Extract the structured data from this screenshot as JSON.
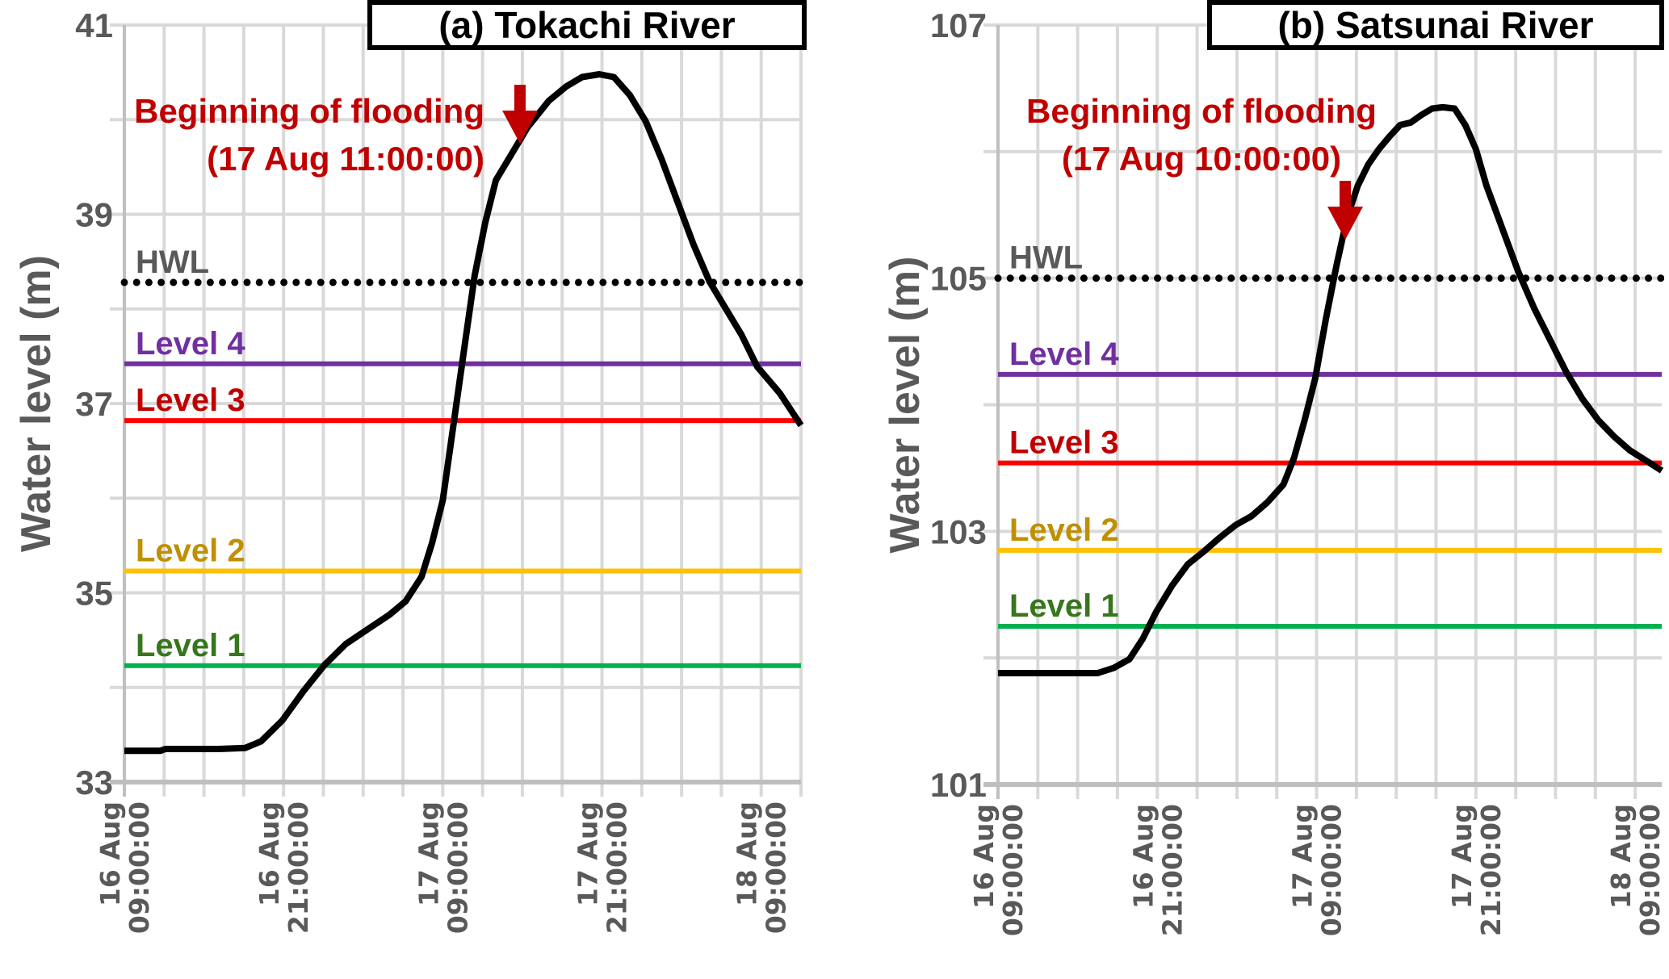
{
  "chart_data": [
    {
      "type": "line",
      "title": "(a) Tokachi River",
      "ylabel": "Water level (m)",
      "xlabel": "",
      "ylim": [
        33,
        41
      ],
      "yticks": [
        33,
        35,
        37,
        39,
        41
      ],
      "xlim_hours_from_start": [
        0,
        51
      ],
      "xticks": [
        {
          "hour": 0,
          "line1": "16 Aug",
          "line2": "09:00:00"
        },
        {
          "hour": 12,
          "line1": "16 Aug",
          "line2": "21:00:00"
        },
        {
          "hour": 24,
          "line1": "17 Aug",
          "line2": "09:00:00"
        },
        {
          "hour": 36,
          "line1": "17 Aug",
          "line2": "21:00:00"
        },
        {
          "hour": 48,
          "line1": "18 Aug",
          "line2": "09:00:00"
        }
      ],
      "grid": true,
      "annotation": {
        "line1": "Beginning of flooding",
        "line2": "(17 Aug 11:00:00)",
        "color": "#C00000"
      },
      "thresholds": [
        {
          "name": "HWL",
          "value": 38.28,
          "line_color": "#000000",
          "label_color": "#595959",
          "style": "dotted"
        },
        {
          "name": "Level 4",
          "value": 37.42,
          "line_color": "#7030A0",
          "label_color": "#7030A0",
          "style": "solid"
        },
        {
          "name": "Level 3",
          "value": 36.82,
          "line_color": "#FF0000",
          "label_color": "#C00000",
          "style": "solid"
        },
        {
          "name": "Level 2",
          "value": 35.23,
          "line_color": "#FFC000",
          "label_color": "#BF9000",
          "style": "solid"
        },
        {
          "name": "Level 1",
          "value": 34.23,
          "line_color": "#00B050",
          "label_color": "#38761D",
          "style": "solid"
        }
      ],
      "series": [
        {
          "name": "Water level",
          "color": "#000000",
          "x_hours": [
            0,
            2.7,
            3.1,
            7.1,
            9.1,
            10.3,
            11.9,
            13.5,
            15.1,
            16.7,
            18.4,
            20.0,
            21.2,
            22.4,
            23.2,
            24.0,
            24.8,
            25.6,
            26.4,
            27.2,
            28.0,
            29.2,
            30.4,
            32.0,
            33.3,
            34.5,
            35.8,
            36.9,
            38.1,
            39.3,
            40.5,
            41.7,
            42.9,
            44.1,
            45.3,
            46.5,
            47.7,
            49.4,
            51.0
          ],
          "y": [
            33.33,
            33.33,
            33.35,
            33.35,
            33.36,
            33.43,
            33.65,
            33.96,
            34.24,
            34.46,
            34.62,
            34.77,
            34.91,
            35.17,
            35.53,
            35.98,
            36.77,
            37.56,
            38.35,
            38.91,
            39.36,
            39.64,
            39.92,
            40.2,
            40.35,
            40.45,
            40.48,
            40.45,
            40.26,
            39.98,
            39.58,
            39.13,
            38.68,
            38.29,
            38.01,
            37.73,
            37.39,
            37.11,
            36.77
          ]
        }
      ]
    },
    {
      "type": "line",
      "title": "(b) Satsunai River",
      "ylabel": "Water level (m)",
      "xlabel": "",
      "ylim": [
        101,
        107
      ],
      "yticks": [
        101,
        103,
        105,
        107
      ],
      "xlim_hours_from_start": [
        0,
        50
      ],
      "xticks": [
        {
          "hour": 0,
          "line1": "16 Aug",
          "line2": "09:00:00"
        },
        {
          "hour": 12,
          "line1": "16 Aug",
          "line2": "21:00:00"
        },
        {
          "hour": 24,
          "line1": "17 Aug",
          "line2": "09:00:00"
        },
        {
          "hour": 36,
          "line1": "17 Aug",
          "line2": "21:00:00"
        },
        {
          "hour": 48,
          "line1": "18 Aug",
          "line2": "09:00:00"
        }
      ],
      "grid": true,
      "annotation": {
        "line1": "Beginning of flooding",
        "line2": "(17 Aug 10:00:00)",
        "color": "#C00000"
      },
      "thresholds": [
        {
          "name": "HWL",
          "value": 105.0,
          "line_color": "#000000",
          "label_color": "#595959",
          "style": "dotted"
        },
        {
          "name": "Level 4",
          "value": 104.24,
          "line_color": "#7030A0",
          "label_color": "#7030A0",
          "style": "solid"
        },
        {
          "name": "Level 3",
          "value": 103.54,
          "line_color": "#FF0000",
          "label_color": "#C00000",
          "style": "solid"
        },
        {
          "name": "Level 2",
          "value": 102.85,
          "line_color": "#FFC000",
          "label_color": "#BF9000",
          "style": "solid"
        },
        {
          "name": "Level 1",
          "value": 102.25,
          "line_color": "#00B050",
          "label_color": "#38761D",
          "style": "solid"
        }
      ],
      "series": [
        {
          "name": "Water level",
          "color": "#000000",
          "x_hours": [
            0,
            7.5,
            8.7,
            9.9,
            10.9,
            11.9,
            13.1,
            14.3,
            15.5,
            16.7,
            17.9,
            19.1,
            20.3,
            21.5,
            22.3,
            23.1,
            23.9,
            24.7,
            25.5,
            26.3,
            27.1,
            27.9,
            28.7,
            29.5,
            30.3,
            31.1,
            31.9,
            32.7,
            33.5,
            34.4,
            35.2,
            36.0,
            36.8,
            38.0,
            39.2,
            40.4,
            41.6,
            42.8,
            44.0,
            45.2,
            46.4,
            47.6,
            48.8,
            50.0
          ],
          "y": [
            101.88,
            101.88,
            101.92,
            101.99,
            102.15,
            102.36,
            102.57,
            102.74,
            102.84,
            102.95,
            103.05,
            103.12,
            103.23,
            103.37,
            103.58,
            103.88,
            104.21,
            104.68,
            105.1,
            105.48,
            105.73,
            105.9,
            106.02,
            106.12,
            106.21,
            106.23,
            106.29,
            106.34,
            106.35,
            106.34,
            106.21,
            106.02,
            105.73,
            105.39,
            105.05,
            104.76,
            104.51,
            104.26,
            104.05,
            103.88,
            103.75,
            103.64,
            103.56,
            103.48
          ]
        }
      ]
    }
  ]
}
